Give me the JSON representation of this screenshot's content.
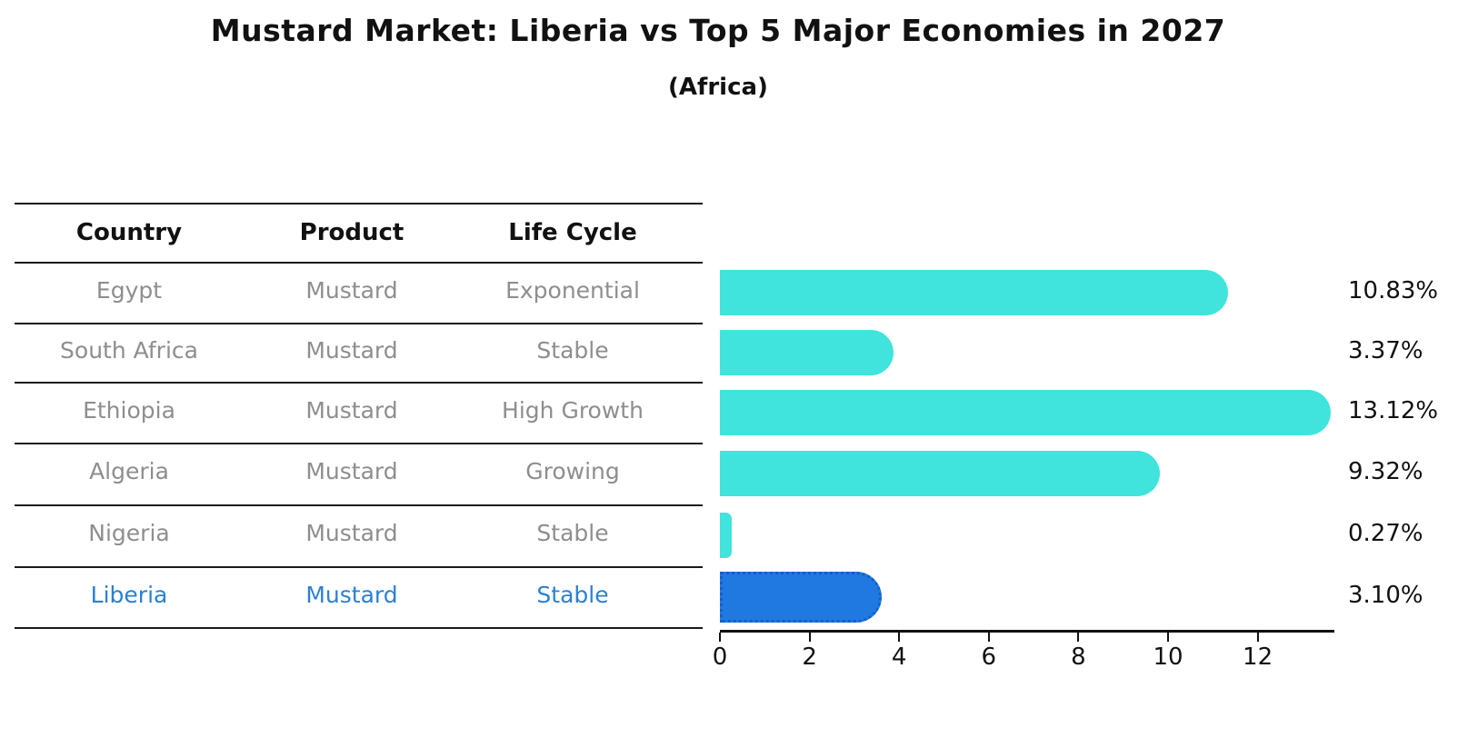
{
  "title": "Mustard Market: Liberia vs Top 5 Major Economies in 2027",
  "subtitle": "(Africa)",
  "table": {
    "headers": [
      "Country",
      "Product",
      "Life Cycle"
    ],
    "rows": [
      {
        "country": "Egypt",
        "product": "Mustard",
        "life_cycle": "Exponential",
        "highlight": false
      },
      {
        "country": "South Africa",
        "product": "Mustard",
        "life_cycle": "Stable",
        "highlight": false
      },
      {
        "country": "Ethiopia",
        "product": "Mustard",
        "life_cycle": "High Growth",
        "highlight": false
      },
      {
        "country": "Algeria",
        "product": "Mustard",
        "life_cycle": "Growing",
        "highlight": false
      },
      {
        "country": "Nigeria",
        "product": "Mustard",
        "life_cycle": "Stable",
        "highlight": false
      },
      {
        "country": "Liberia",
        "product": "Mustard",
        "life_cycle": "Stable",
        "highlight": true
      }
    ]
  },
  "chart_data": {
    "type": "bar",
    "orientation": "horizontal",
    "title": "Mustard Market: Liberia vs Top 5 Major Economies in 2027",
    "subtitle": "(Africa)",
    "categories": [
      "Egypt",
      "South Africa",
      "Ethiopia",
      "Algeria",
      "Nigeria",
      "Liberia"
    ],
    "values": [
      10.83,
      3.37,
      13.12,
      9.32,
      0.27,
      3.1
    ],
    "value_labels": [
      "10.83%",
      "3.37%",
      "13.12%",
      "9.32%",
      "0.27%",
      "3.10%"
    ],
    "x_ticks": [
      0,
      2,
      4,
      6,
      8,
      10,
      12
    ],
    "xlim": [
      0,
      13.7
    ],
    "grid": false,
    "legend": false,
    "highlight_index": 5,
    "colors": {
      "bar": "#40e4dc",
      "highlight_bar": "#2079e0",
      "highlight_border": "#1260c8",
      "highlight_text": "#2a80d5",
      "row_text": "#8e8e8e",
      "axis_text": "#111111"
    }
  }
}
